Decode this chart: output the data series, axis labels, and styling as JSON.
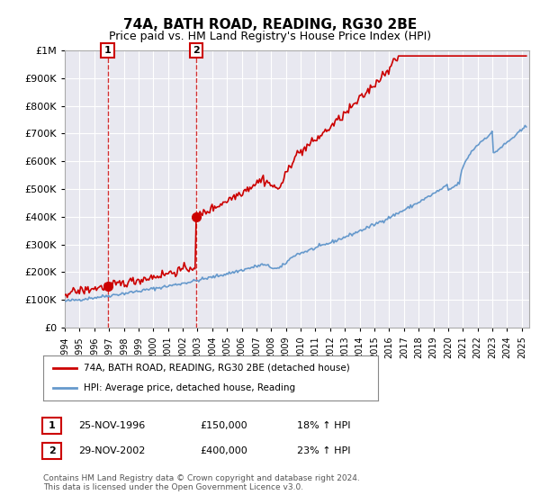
{
  "title": "74A, BATH ROAD, READING, RG30 2BE",
  "subtitle": "Price paid vs. HM Land Registry's House Price Index (HPI)",
  "ylim": [
    0,
    1000000
  ],
  "sale1_date": 1996.9,
  "sale1_price": 150000,
  "sale2_date": 2002.9,
  "sale2_price": 400000,
  "legend_line1": "74A, BATH ROAD, READING, RG30 2BE (detached house)",
  "legend_line2": "HPI: Average price, detached house, Reading",
  "table_row1": [
    "1",
    "25-NOV-1996",
    "£150,000",
    "18% ↑ HPI"
  ],
  "table_row2": [
    "2",
    "29-NOV-2002",
    "£400,000",
    "23% ↑ HPI"
  ],
  "footer": "Contains HM Land Registry data © Crown copyright and database right 2024.\nThis data is licensed under the Open Government Licence v3.0.",
  "line_color_red": "#cc0000",
  "line_color_blue": "#6699cc",
  "background_chart": "#e8e8f0",
  "background_figure": "#ffffff",
  "grid_color": "#ffffff",
  "annotation_box_color": "#cc0000"
}
